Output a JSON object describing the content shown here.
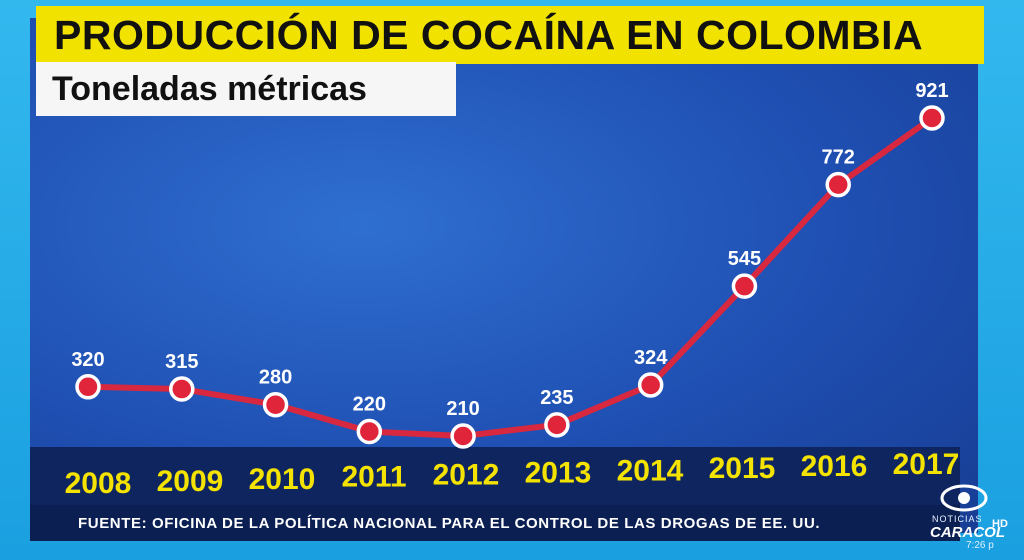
{
  "chart_data": {
    "type": "line",
    "title": "PRODUCCIÓN DE COCAÍNA EN COLOMBIA",
    "subtitle": "Toneladas métricas",
    "xlabel": "",
    "ylabel": "",
    "categories": [
      "2008",
      "2009",
      "2010",
      "2011",
      "2012",
      "2013",
      "2014",
      "2015",
      "2016",
      "2017"
    ],
    "values": [
      320,
      315,
      280,
      220,
      210,
      235,
      324,
      545,
      772,
      921
    ],
    "data_labels": [
      "320",
      "315",
      "280",
      "220",
      "210",
      "235",
      "324",
      "545",
      "772",
      "921"
    ],
    "grid": false,
    "legend": "none",
    "colors": {
      "line": "#d8283f",
      "marker": "#e0253a",
      "marker_outline": "#ffffff",
      "label": "#ffffff",
      "year_label": "#f4e200"
    }
  },
  "source": "FUENTE: OFICINA DE LA POLÍTICA NACIONAL PARA EL CONTROL DE LAS DROGAS DE EE. UU.",
  "broadcaster": {
    "small": "NOTICIAS",
    "name": "CARACOL",
    "hd": "HD",
    "time": "7:26 p"
  }
}
